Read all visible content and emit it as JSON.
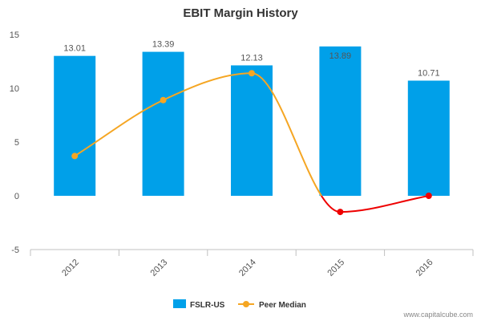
{
  "chart_data": {
    "type": "bar",
    "title": "EBIT Margin History",
    "categories": [
      "2012",
      "2013",
      "2014",
      "2015",
      "2016"
    ],
    "series": [
      {
        "name": "FSLR-US",
        "type": "bar",
        "color": "#00a0e9",
        "values": [
          13.01,
          13.39,
          12.13,
          13.89,
          10.71
        ],
        "labels": [
          "13.01",
          "13.39",
          "12.13",
          "13.89",
          "10.71"
        ]
      },
      {
        "name": "Peer Median",
        "type": "line",
        "color": "#f5a623",
        "negative_color": "#ee0000",
        "values": [
          3.7,
          8.9,
          11.4,
          -1.5,
          0.0
        ]
      }
    ],
    "ylim": [
      -5,
      15
    ],
    "yticks": [
      "-5",
      "0",
      "5",
      "10",
      "15"
    ],
    "grid": false,
    "legend": "bottom-center",
    "xlabel": "",
    "ylabel": ""
  },
  "credit": "www.capitalcube.com"
}
